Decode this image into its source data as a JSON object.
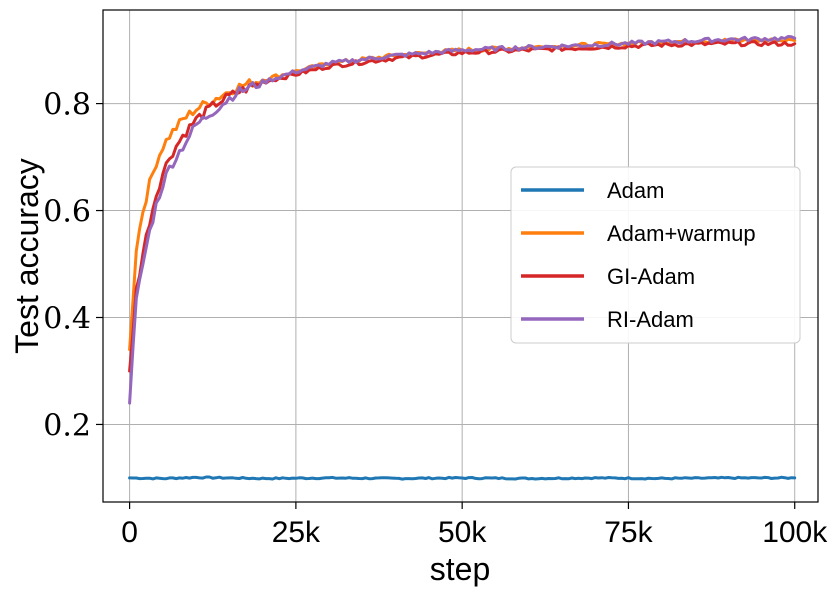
{
  "chart_data": {
    "type": "line",
    "xlabel": "step",
    "ylabel": "Test accuracy",
    "xlim": [
      -4000,
      103500
    ],
    "ylim": [
      0.055,
      0.975
    ],
    "xticks": [
      0,
      25000,
      50000,
      75000,
      100000
    ],
    "xtick_labels": [
      "0",
      "25k",
      "50k",
      "75k",
      "100k"
    ],
    "yticks": [
      0.2,
      0.4,
      0.6,
      0.8
    ],
    "ytick_labels": [
      "0.2",
      "0.4",
      "0.6",
      "0.8"
    ],
    "grid": true,
    "legend_position": "center-right",
    "series": [
      {
        "name": "Adam",
        "color": "#1f77b4",
        "x": [
          0,
          5000,
          10000,
          20000,
          30000,
          40000,
          50000,
          60000,
          70000,
          80000,
          90000,
          100000
        ],
        "y": [
          0.1,
          0.099,
          0.101,
          0.099,
          0.1,
          0.099,
          0.1,
          0.099,
          0.1,
          0.099,
          0.1,
          0.1
        ]
      },
      {
        "name": "Adam+warmup",
        "color": "#ff7f0e",
        "x": [
          0,
          1000,
          2000,
          3000,
          4000,
          5000,
          6000,
          8000,
          10000,
          13000,
          16000,
          20000,
          25000,
          30000,
          40000,
          50000,
          60000,
          70000,
          80000,
          90000,
          100000
        ],
        "y": [
          0.34,
          0.53,
          0.6,
          0.65,
          0.69,
          0.72,
          0.74,
          0.77,
          0.79,
          0.81,
          0.83,
          0.845,
          0.86,
          0.875,
          0.89,
          0.9,
          0.905,
          0.91,
          0.915,
          0.918,
          0.918
        ]
      },
      {
        "name": "GI-Adam",
        "color": "#d62728",
        "x": [
          0,
          1000,
          2000,
          3000,
          4000,
          5000,
          6000,
          8000,
          10000,
          13000,
          16000,
          20000,
          25000,
          30000,
          40000,
          50000,
          60000,
          70000,
          80000,
          90000,
          100000
        ],
        "y": [
          0.3,
          0.45,
          0.52,
          0.58,
          0.63,
          0.67,
          0.7,
          0.74,
          0.77,
          0.8,
          0.82,
          0.84,
          0.855,
          0.87,
          0.885,
          0.895,
          0.9,
          0.905,
          0.91,
          0.912,
          0.912
        ]
      },
      {
        "name": "RI-Adam",
        "color": "#9467bd",
        "x": [
          0,
          1000,
          2000,
          3000,
          4000,
          5000,
          6000,
          8000,
          10000,
          13000,
          16000,
          20000,
          25000,
          30000,
          40000,
          50000,
          60000,
          70000,
          80000,
          90000,
          100000
        ],
        "y": [
          0.24,
          0.43,
          0.5,
          0.56,
          0.61,
          0.65,
          0.68,
          0.72,
          0.76,
          0.79,
          0.82,
          0.84,
          0.86,
          0.875,
          0.89,
          0.9,
          0.905,
          0.91,
          0.915,
          0.92,
          0.922
        ]
      }
    ]
  }
}
